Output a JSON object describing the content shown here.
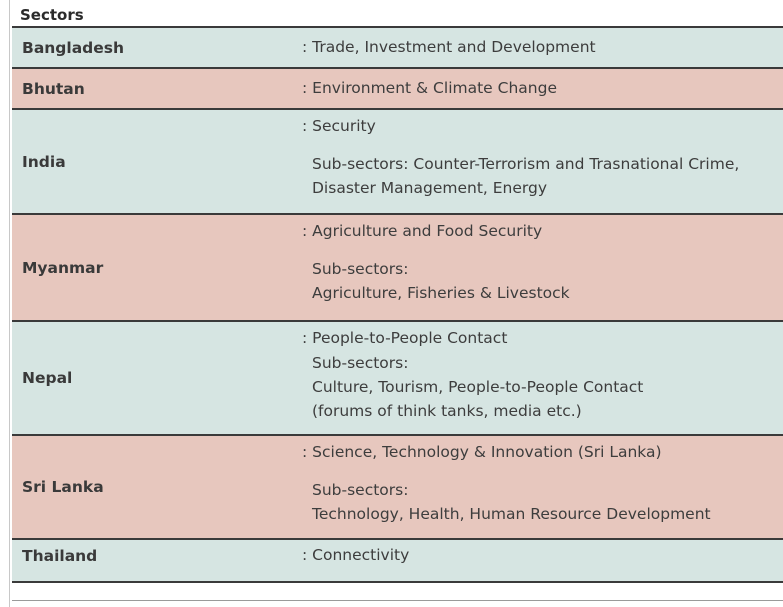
{
  "heading": "Sectors",
  "rows": [
    {
      "country": "Bangladesh",
      "sector": ": Trade, Investment and Development",
      "sub": []
    },
    {
      "country": "Bhutan",
      "sector": ": Environment & Climate Change",
      "sub": []
    },
    {
      "country": "India",
      "sector": ": Security",
      "sub": [
        "Sub-sectors: Counter-Terrorism and Trasnational Crime,",
        "Disaster Management, Energy"
      ]
    },
    {
      "country": "Myanmar",
      "sector": ": Agriculture and Food Security",
      "sub": [
        "Sub-sectors:",
        "Agriculture, Fisheries & Livestock"
      ]
    },
    {
      "country": "Nepal",
      "sector": ": People-to-People Contact",
      "sub": [
        "Sub-sectors:",
        "Culture, Tourism, People-to-People Contact",
        "(forums of think tanks, media etc.)"
      ]
    },
    {
      "country": "Sri Lanka",
      "sector": ": Science, Technology & Innovation (Sri Lanka)",
      "sub": [
        "Sub-sectors:",
        "Technology, Health, Human Resource Development"
      ]
    },
    {
      "country": "Thailand",
      "sector": ": Connectivity",
      "sub": []
    }
  ],
  "colors": {
    "teal": "#d6e5e2",
    "rose": "#e7c7be",
    "border": "#3a3a3a"
  }
}
